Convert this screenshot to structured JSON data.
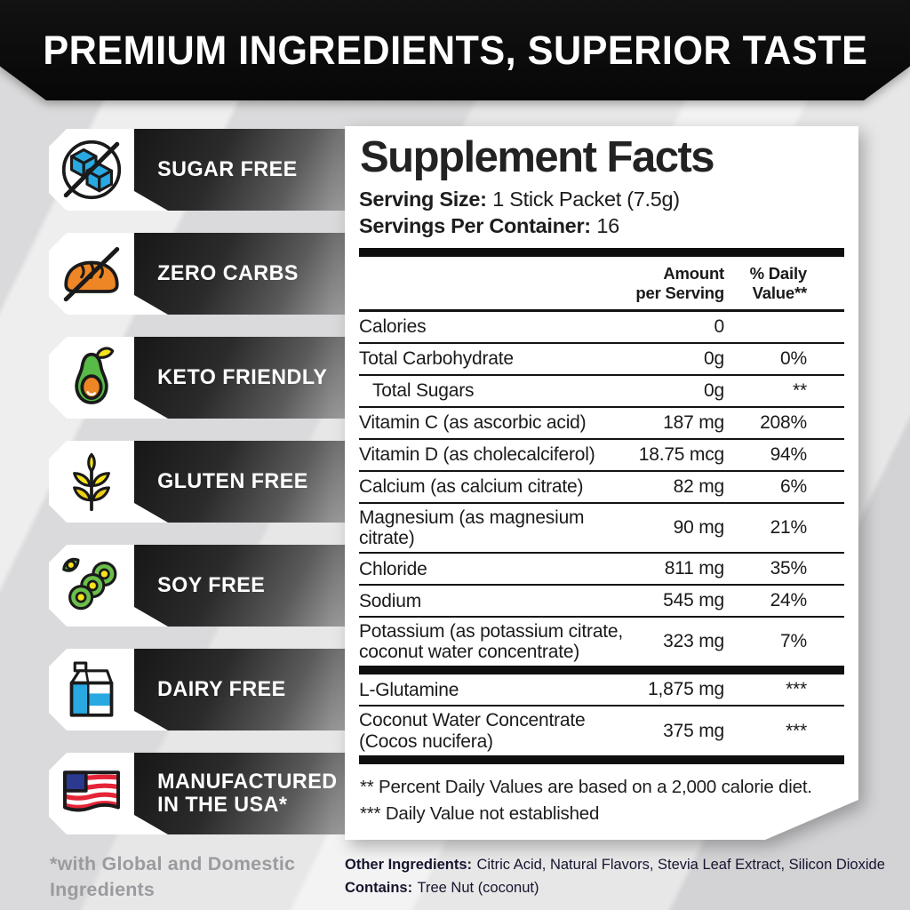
{
  "banner": {
    "title": "PREMIUM INGREDIENTS, SUPERIOR TASTE"
  },
  "badges": [
    {
      "label": "SUGAR FREE",
      "icon": "sugar-free-icon"
    },
    {
      "label": "ZERO CARBS",
      "icon": "zero-carbs-icon"
    },
    {
      "label": "KETO FRIENDLY",
      "icon": "keto-friendly-icon"
    },
    {
      "label": "GLUTEN FREE",
      "icon": "gluten-free-icon"
    },
    {
      "label": "SOY FREE",
      "icon": "soy-free-icon"
    },
    {
      "label": "DAIRY FREE",
      "icon": "dairy-free-icon"
    },
    {
      "label": "MANUFACTURED IN THE USA*",
      "icon": "usa-flag-icon"
    }
  ],
  "supplement_facts": {
    "title": "Supplement Facts",
    "serving_size_label": "Serving Size:",
    "serving_size_value": "1 Stick Packet (7.5g)",
    "servings_label": "Servings Per Container:",
    "servings_value": "16",
    "columns": [
      {
        "lines": [
          "Amount",
          "per Serving"
        ]
      },
      {
        "lines": [
          "% Daily",
          "Value**"
        ]
      }
    ],
    "rows": [
      {
        "name_lines": [
          "Calories"
        ],
        "amount": "0",
        "dv": "",
        "indent": false,
        "thick_after": false
      },
      {
        "name_lines": [
          "Total Carbohydrate"
        ],
        "amount": "0g",
        "dv": "0%",
        "indent": false,
        "thick_after": false
      },
      {
        "name_lines": [
          "Total Sugars"
        ],
        "amount": "0g",
        "dv": "**",
        "indent": true,
        "thick_after": false
      },
      {
        "name_lines": [
          "Vitamin C (as ascorbic acid)"
        ],
        "amount": "187 mg",
        "dv": "208%",
        "indent": false,
        "thick_after": false
      },
      {
        "name_lines": [
          "Vitamin D (as cholecalciferol)"
        ],
        "amount": "18.75 mcg",
        "dv": "94%",
        "indent": false,
        "thick_after": false
      },
      {
        "name_lines": [
          "Calcium (as calcium citrate)"
        ],
        "amount": "82 mg",
        "dv": "6%",
        "indent": false,
        "thick_after": false
      },
      {
        "name_lines": [
          "Magnesium (as magnesium citrate)"
        ],
        "amount": "90 mg",
        "dv": "21%",
        "indent": false,
        "thick_after": false
      },
      {
        "name_lines": [
          "Chloride"
        ],
        "amount": "811 mg",
        "dv": "35%",
        "indent": false,
        "thick_after": false
      },
      {
        "name_lines": [
          "Sodium"
        ],
        "amount": "545 mg",
        "dv": "24%",
        "indent": false,
        "thick_after": false
      },
      {
        "name_lines": [
          "Potassium (as potassium citrate,",
          "coconut water concentrate)"
        ],
        "amount": "323 mg",
        "dv": "7%",
        "indent": false,
        "thick_after": true
      },
      {
        "name_lines": [
          "L-Glutamine"
        ],
        "amount": "1,875 mg",
        "dv": "***",
        "indent": false,
        "thick_after": false
      },
      {
        "name_lines": [
          "Coconut Water Concentrate",
          "(Cocos nucifera)"
        ],
        "amount": "375 mg",
        "dv": "***",
        "indent": false,
        "thick_after": true
      }
    ],
    "footnotes": [
      "** Percent Daily Values are based on a 2,000 calorie diet.",
      "*** Daily Value not established"
    ]
  },
  "footer": {
    "asterisk_note": "*with Global and Domestic Ingredients",
    "other_ingredients_label": "Other Ingredients:",
    "other_ingredients_value": "Citric Acid, Natural Flavors, Stevia Leaf Extract, Silicon Dioxide",
    "contains_label": "Contains:",
    "contains_value": "Tree Nut (coconut)"
  },
  "colors": {
    "outline": "#1a1a1a",
    "blue": "#29a9e1",
    "orange": "#ef8625",
    "avocado_green": "#58bb47",
    "soy_green": "#6abf4b",
    "yellow": "#f6e31c",
    "gold": "#eecf14",
    "flag_blue": "#2b3990",
    "flag_red": "#e52437",
    "bar_dark": "#161616",
    "bar_light": "#a2a2a2",
    "banner_black": "#0b0b0b"
  }
}
